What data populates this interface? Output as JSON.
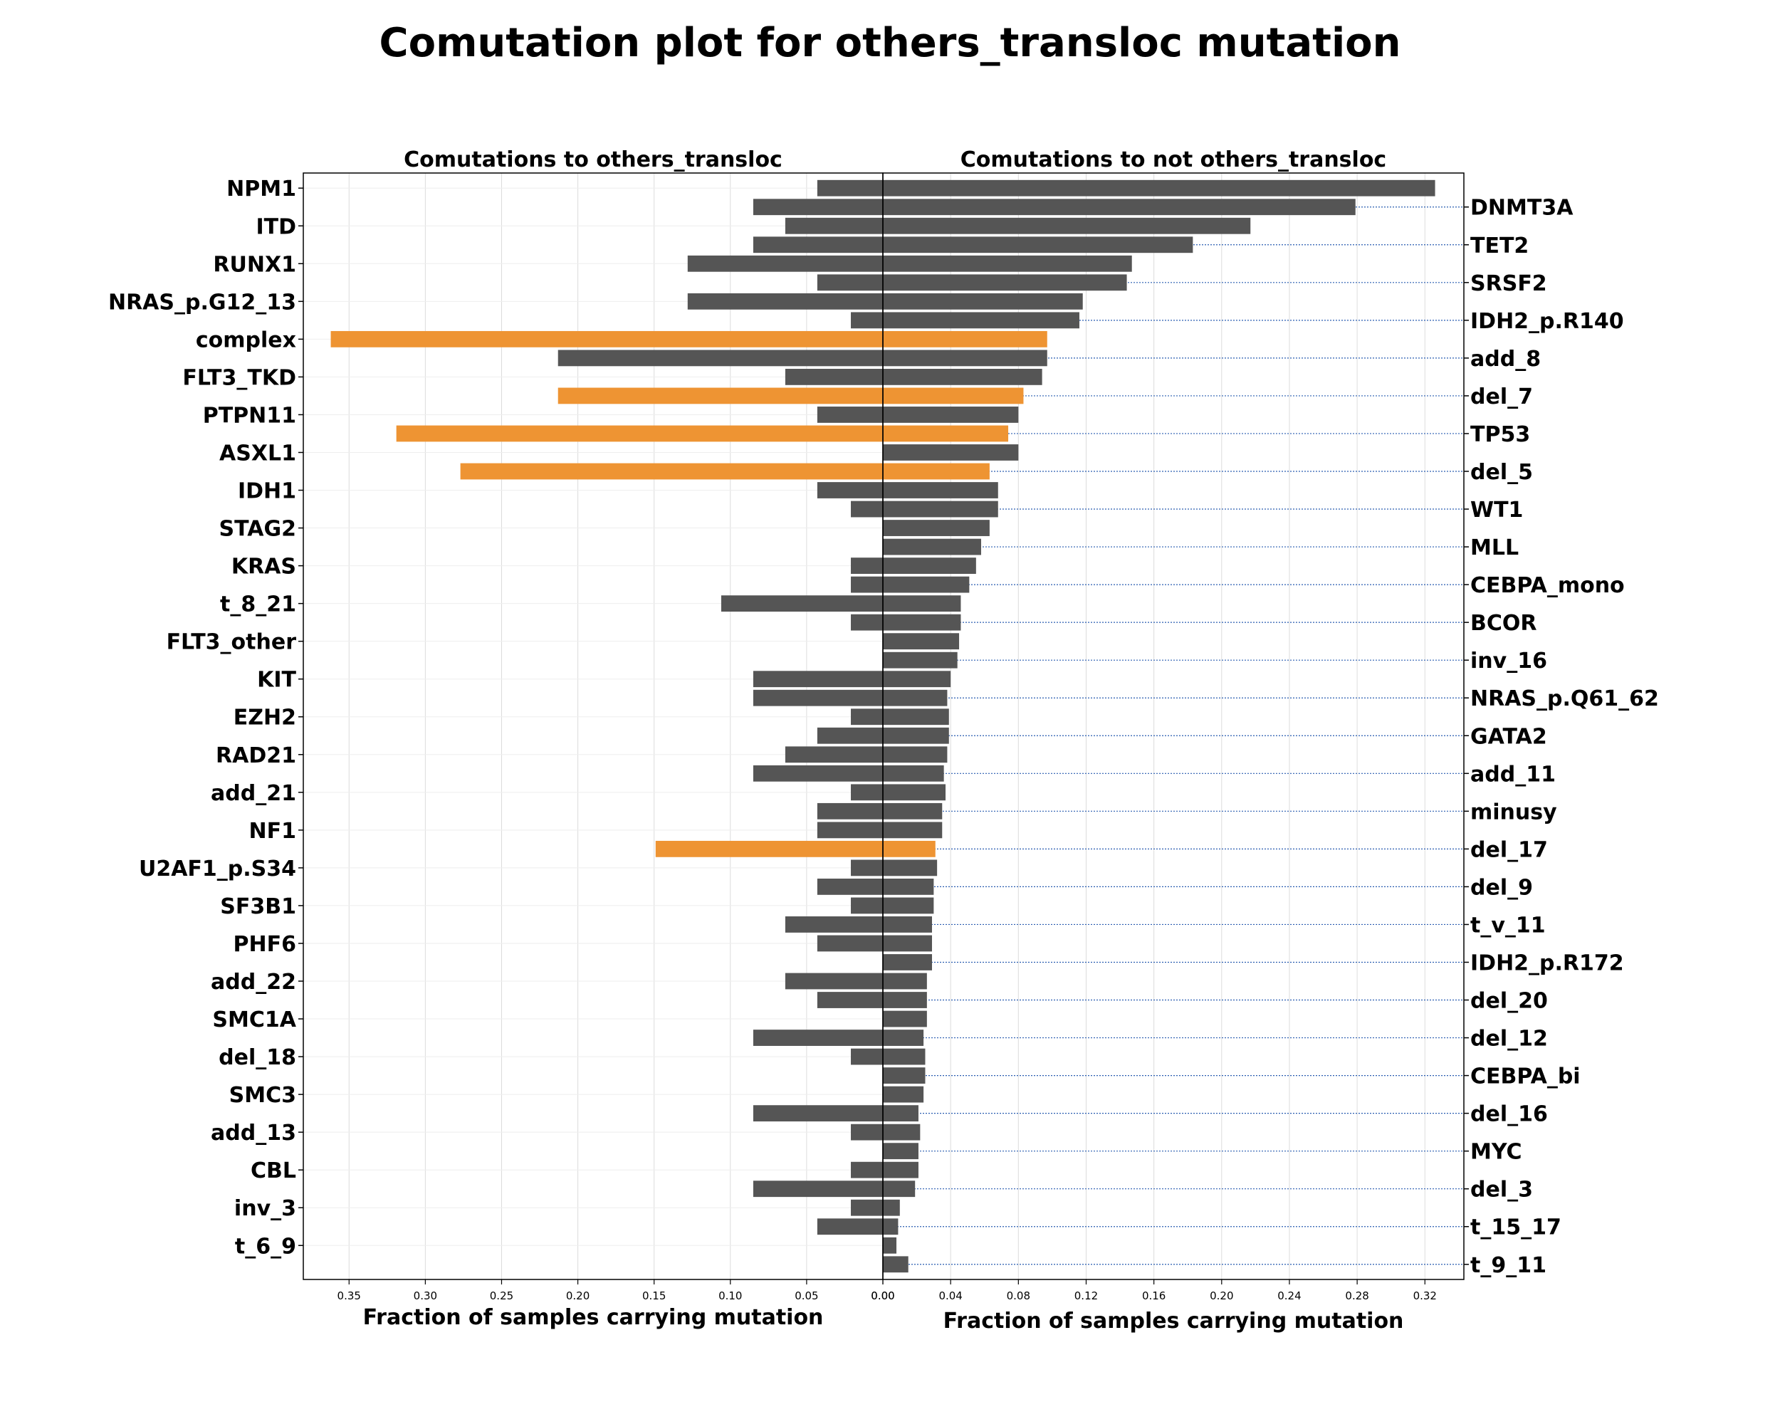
{
  "title": "Comutation plot for others_transloc mutation",
  "colors": {
    "normal": "#555555",
    "highlight": "#ee9433",
    "grid": "#dcdcdc",
    "dotted": "#2a5db0"
  },
  "chart_data": [
    {
      "type": "bar",
      "orientation": "horizontal",
      "panel": "left",
      "title": "Comutations to others_transloc",
      "xlabel": "Fraction of samples carrying mutation",
      "xlim": [
        0.38,
        0.0
      ],
      "xticks": [
        "0.35",
        "0.30",
        "0.25",
        "0.20",
        "0.15",
        "0.10",
        "0.05",
        "0.00"
      ],
      "tick_labels": [
        "NPM1",
        "ITD",
        "RUNX1",
        "NRAS_p.G12_13",
        "complex",
        "FLT3_TKD",
        "PTPN11",
        "ASXL1",
        "IDH1",
        "STAG2",
        "KRAS",
        "t_8_21",
        "FLT3_other",
        "KIT",
        "EZH2",
        "RAD21",
        "add_21",
        "NF1",
        "U2AF1_p.S34",
        "SF3B1",
        "PHF6",
        "add_22",
        "SMC1A",
        "del_18",
        "SMC3",
        "add_13",
        "CBL",
        "inv_3",
        "t_6_9"
      ],
      "categories": [
        "NPM1",
        "DNMT3A",
        "ITD",
        "TET2",
        "RUNX1",
        "SRSF2",
        "NRAS_p.G12_13",
        "IDH2_p.R140",
        "complex",
        "add_8",
        "FLT3_TKD",
        "del_7",
        "PTPN11",
        "TP53",
        "ASXL1",
        "del_5",
        "IDH1",
        "WT1",
        "STAG2",
        "MLL",
        "KRAS",
        "CEBPA_mono",
        "t_8_21",
        "BCOR",
        "FLT3_other",
        "inv_16",
        "KIT",
        "NRAS_p.Q61_62",
        "EZH2",
        "GATA2",
        "RAD21",
        "add_11",
        "add_21",
        "minusy",
        "NF1",
        "del_17",
        "U2AF1_p.S34",
        "del_9",
        "SF3B1",
        "t_v_11",
        "PHF6",
        "IDH2_p.R172",
        "add_22",
        "del_20",
        "SMC1A",
        "del_12",
        "del_18",
        "CEBPA_bi",
        "SMC3",
        "del_16",
        "add_13",
        "MYC",
        "CBL",
        "del_3",
        "inv_3",
        "t_15_17",
        "t_6_9",
        "t_9_11"
      ],
      "values": [
        0.043,
        0.085,
        0.064,
        0.085,
        0.128,
        0.043,
        0.128,
        0.021,
        0.362,
        0.213,
        0.064,
        0.213,
        0.043,
        0.319,
        0.0,
        0.277,
        0.043,
        0.021,
        0.0,
        0.0,
        0.021,
        0.021,
        0.106,
        0.021,
        0.0,
        0.0,
        0.085,
        0.085,
        0.021,
        0.043,
        0.064,
        0.085,
        0.021,
        0.043,
        0.043,
        0.149,
        0.021,
        0.043,
        0.021,
        0.064,
        0.043,
        0.0,
        0.064,
        0.043,
        0.0,
        0.085,
        0.021,
        0.0,
        0.0,
        0.085,
        0.021,
        0.0,
        0.021,
        0.085,
        0.021,
        0.043,
        0.0,
        0.0
      ],
      "highlighted": [
        "complex",
        "del_7",
        "TP53",
        "del_5",
        "del_17"
      ]
    },
    {
      "type": "bar",
      "orientation": "horizontal",
      "panel": "right",
      "title": "Comutations to not others_transloc",
      "xlabel": "Fraction of samples carrying mutation",
      "xlim": [
        0.0,
        0.343
      ],
      "xticks": [
        "0.00",
        "0.04",
        "0.08",
        "0.12",
        "0.16",
        "0.20",
        "0.24",
        "0.28",
        "0.32"
      ],
      "tick_labels": [
        "DNMT3A",
        "TET2",
        "SRSF2",
        "IDH2_p.R140",
        "add_8",
        "del_7",
        "TP53",
        "del_5",
        "WT1",
        "MLL",
        "CEBPA_mono",
        "BCOR",
        "inv_16",
        "NRAS_p.Q61_62",
        "GATA2",
        "add_11",
        "minusy",
        "del_17",
        "del_9",
        "t_v_11",
        "IDH2_p.R172",
        "del_20",
        "del_12",
        "CEBPA_bi",
        "del_16",
        "MYC",
        "del_3",
        "t_15_17",
        "t_9_11"
      ],
      "categories": [
        "NPM1",
        "DNMT3A",
        "ITD",
        "TET2",
        "RUNX1",
        "SRSF2",
        "NRAS_p.G12_13",
        "IDH2_p.R140",
        "complex",
        "add_8",
        "FLT3_TKD",
        "del_7",
        "PTPN11",
        "TP53",
        "ASXL1",
        "del_5",
        "IDH1",
        "WT1",
        "STAG2",
        "MLL",
        "KRAS",
        "CEBPA_mono",
        "t_8_21",
        "BCOR",
        "FLT3_other",
        "inv_16",
        "KIT",
        "NRAS_p.Q61_62",
        "EZH2",
        "GATA2",
        "RAD21",
        "add_11",
        "add_21",
        "minusy",
        "NF1",
        "del_17",
        "U2AF1_p.S34",
        "del_9",
        "SF3B1",
        "t_v_11",
        "PHF6",
        "IDH2_p.R172",
        "add_22",
        "del_20",
        "SMC1A",
        "del_12",
        "del_18",
        "CEBPA_bi",
        "SMC3",
        "del_16",
        "add_13",
        "MYC",
        "CBL",
        "del_3",
        "inv_3",
        "t_15_17",
        "t_6_9",
        "t_9_11"
      ],
      "values": [
        0.326,
        0.279,
        0.217,
        0.183,
        0.147,
        0.144,
        0.118,
        0.116,
        0.097,
        0.097,
        0.094,
        0.083,
        0.08,
        0.074,
        0.08,
        0.063,
        0.068,
        0.068,
        0.063,
        0.058,
        0.055,
        0.051,
        0.046,
        0.046,
        0.045,
        0.044,
        0.04,
        0.038,
        0.039,
        0.039,
        0.038,
        0.036,
        0.037,
        0.035,
        0.035,
        0.031,
        0.032,
        0.03,
        0.03,
        0.029,
        0.029,
        0.029,
        0.026,
        0.026,
        0.026,
        0.024,
        0.025,
        0.025,
        0.024,
        0.021,
        0.022,
        0.021,
        0.021,
        0.019,
        0.01,
        0.009,
        0.008,
        0.015
      ],
      "highlighted": [
        "complex",
        "del_7",
        "TP53",
        "del_5",
        "del_17"
      ]
    }
  ]
}
